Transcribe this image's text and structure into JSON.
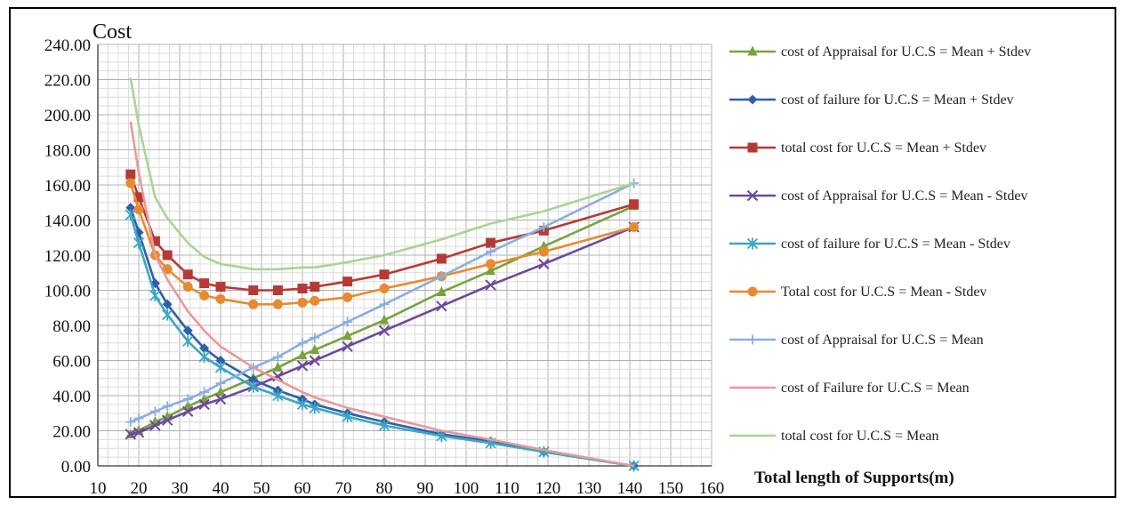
{
  "chart_data": {
    "type": "line",
    "ylabel": "Cost",
    "xlabel": "Total length of Supports(m)",
    "xlim": [
      10,
      160
    ],
    "ylim": [
      0,
      240
    ],
    "x_ticks": [
      "10",
      "20",
      "30",
      "40",
      "50",
      "60",
      "70",
      "80",
      "90",
      "100",
      "110",
      "120",
      "130",
      "140",
      "150",
      "160"
    ],
    "y_ticks": [
      "0.00",
      "20.00",
      "40.00",
      "60.00",
      "80.00",
      "100.00",
      "120.00",
      "140.00",
      "160.00",
      "180.00",
      "200.00",
      "220.00",
      "240.00"
    ],
    "grid": true,
    "legend_position": "right",
    "series": [
      {
        "name": "cost of Appraisal for U.C.S = Mean + Stdev",
        "color": "#77a33a",
        "marker": "triangle",
        "x": [
          18,
          20,
          24,
          27,
          32,
          36,
          40,
          48,
          54,
          60,
          63,
          71,
          80,
          94,
          106,
          119,
          141
        ],
        "y": [
          18,
          20,
          25,
          28,
          34,
          38,
          42,
          50,
          56,
          63,
          66,
          74,
          83,
          99,
          111,
          125,
          148
        ]
      },
      {
        "name": "cost of failure for U.C.S = Mean + Stdev",
        "color": "#2e5fa8",
        "marker": "diamond",
        "x": [
          18,
          20,
          24,
          27,
          32,
          36,
          40,
          48,
          54,
          60,
          63,
          71,
          80,
          94,
          106,
          119,
          141
        ],
        "y": [
          147,
          133,
          104,
          92,
          77,
          67,
          60,
          49,
          43,
          38,
          35,
          30,
          25,
          18,
          14,
          8,
          0
        ]
      },
      {
        "name": "total cost for U.C.S = Mean + Stdev",
        "color": "#b53a35",
        "marker": "square",
        "x": [
          18,
          20,
          24,
          27,
          32,
          36,
          40,
          48,
          54,
          60,
          63,
          71,
          80,
          94,
          106,
          119,
          141
        ],
        "y": [
          166,
          153,
          128,
          120,
          109,
          104,
          102,
          100,
          100,
          101,
          102,
          105,
          109,
          118,
          127,
          134,
          149
        ]
      },
      {
        "name": "cost of Appraisal for U.C.S = Mean - Stdev",
        "color": "#6a4a9c",
        "marker": "x",
        "x": [
          18,
          20,
          24,
          27,
          32,
          36,
          40,
          48,
          54,
          60,
          63,
          71,
          80,
          94,
          106,
          119,
          141
        ],
        "y": [
          18,
          19,
          23,
          26,
          31,
          35,
          38,
          45,
          51,
          57,
          60,
          68,
          77,
          91,
          103,
          115,
          136
        ]
      },
      {
        "name": "cost of failure for U.C.S = Mean - Stdev",
        "color": "#3ba6c4",
        "marker": "star",
        "x": [
          18,
          20,
          24,
          27,
          32,
          36,
          40,
          48,
          54,
          60,
          63,
          71,
          80,
          94,
          106,
          119,
          141
        ],
        "y": [
          143,
          127,
          97,
          86,
          71,
          62,
          56,
          45,
          40,
          35,
          33,
          28,
          23,
          17,
          13,
          8,
          0
        ]
      },
      {
        "name": "Total cost for U.C.S = Mean - Stdev",
        "color": "#e88a30",
        "marker": "circle",
        "x": [
          18,
          20,
          24,
          27,
          32,
          36,
          40,
          48,
          54,
          60,
          63,
          71,
          80,
          94,
          106,
          119,
          141
        ],
        "y": [
          161,
          146,
          120,
          112,
          102,
          97,
          95,
          92,
          92,
          93,
          94,
          96,
          101,
          108,
          115,
          122,
          136
        ]
      },
      {
        "name": "cost of Appraisal for U.C.S = Mean",
        "color": "#8aaee0",
        "marker": "plus",
        "x": [
          18,
          20,
          24,
          27,
          32,
          36,
          40,
          48,
          54,
          60,
          63,
          71,
          80,
          94,
          106,
          119,
          141
        ],
        "y": [
          25,
          27,
          31,
          34,
          38,
          42,
          47,
          56,
          62,
          70,
          73,
          82,
          92,
          108,
          122,
          136,
          161
        ]
      },
      {
        "name": "cost of Failure for U.C.S = Mean",
        "color": "#e89a98",
        "marker": "none",
        "x": [
          18,
          20,
          24,
          27,
          32,
          36,
          40,
          48,
          54,
          60,
          63,
          71,
          80,
          94,
          106,
          119,
          141
        ],
        "y": [
          196,
          167,
          120,
          106,
          88,
          77,
          68,
          56,
          49,
          42,
          39,
          33,
          28,
          20,
          15,
          9,
          0
        ]
      },
      {
        "name": "total cost for U.C.S = Mean",
        "color": "#a9d493",
        "marker": "none",
        "x": [
          18,
          20,
          24,
          27,
          32,
          36,
          40,
          48,
          54,
          60,
          63,
          71,
          80,
          94,
          106,
          119,
          141
        ],
        "y": [
          221,
          194,
          153,
          141,
          127,
          119,
          115,
          112,
          112,
          113,
          113,
          116,
          120,
          129,
          138,
          145,
          161
        ]
      }
    ]
  }
}
